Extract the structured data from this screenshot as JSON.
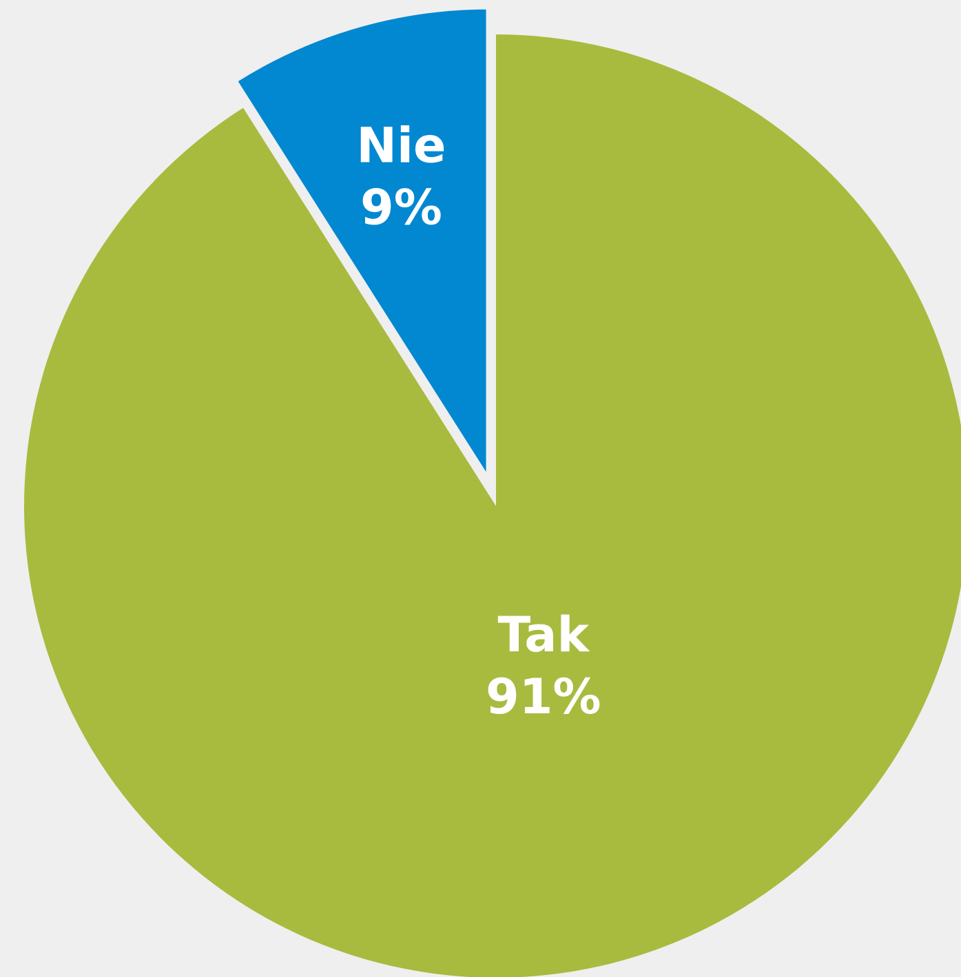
{
  "chart_data": {
    "type": "pie",
    "categories": [
      "Tak",
      "Nie"
    ],
    "values": [
      91,
      9
    ],
    "value_labels": [
      "91%",
      "9%"
    ],
    "colors": [
      "#a8bb3e",
      "#0288d1"
    ]
  }
}
